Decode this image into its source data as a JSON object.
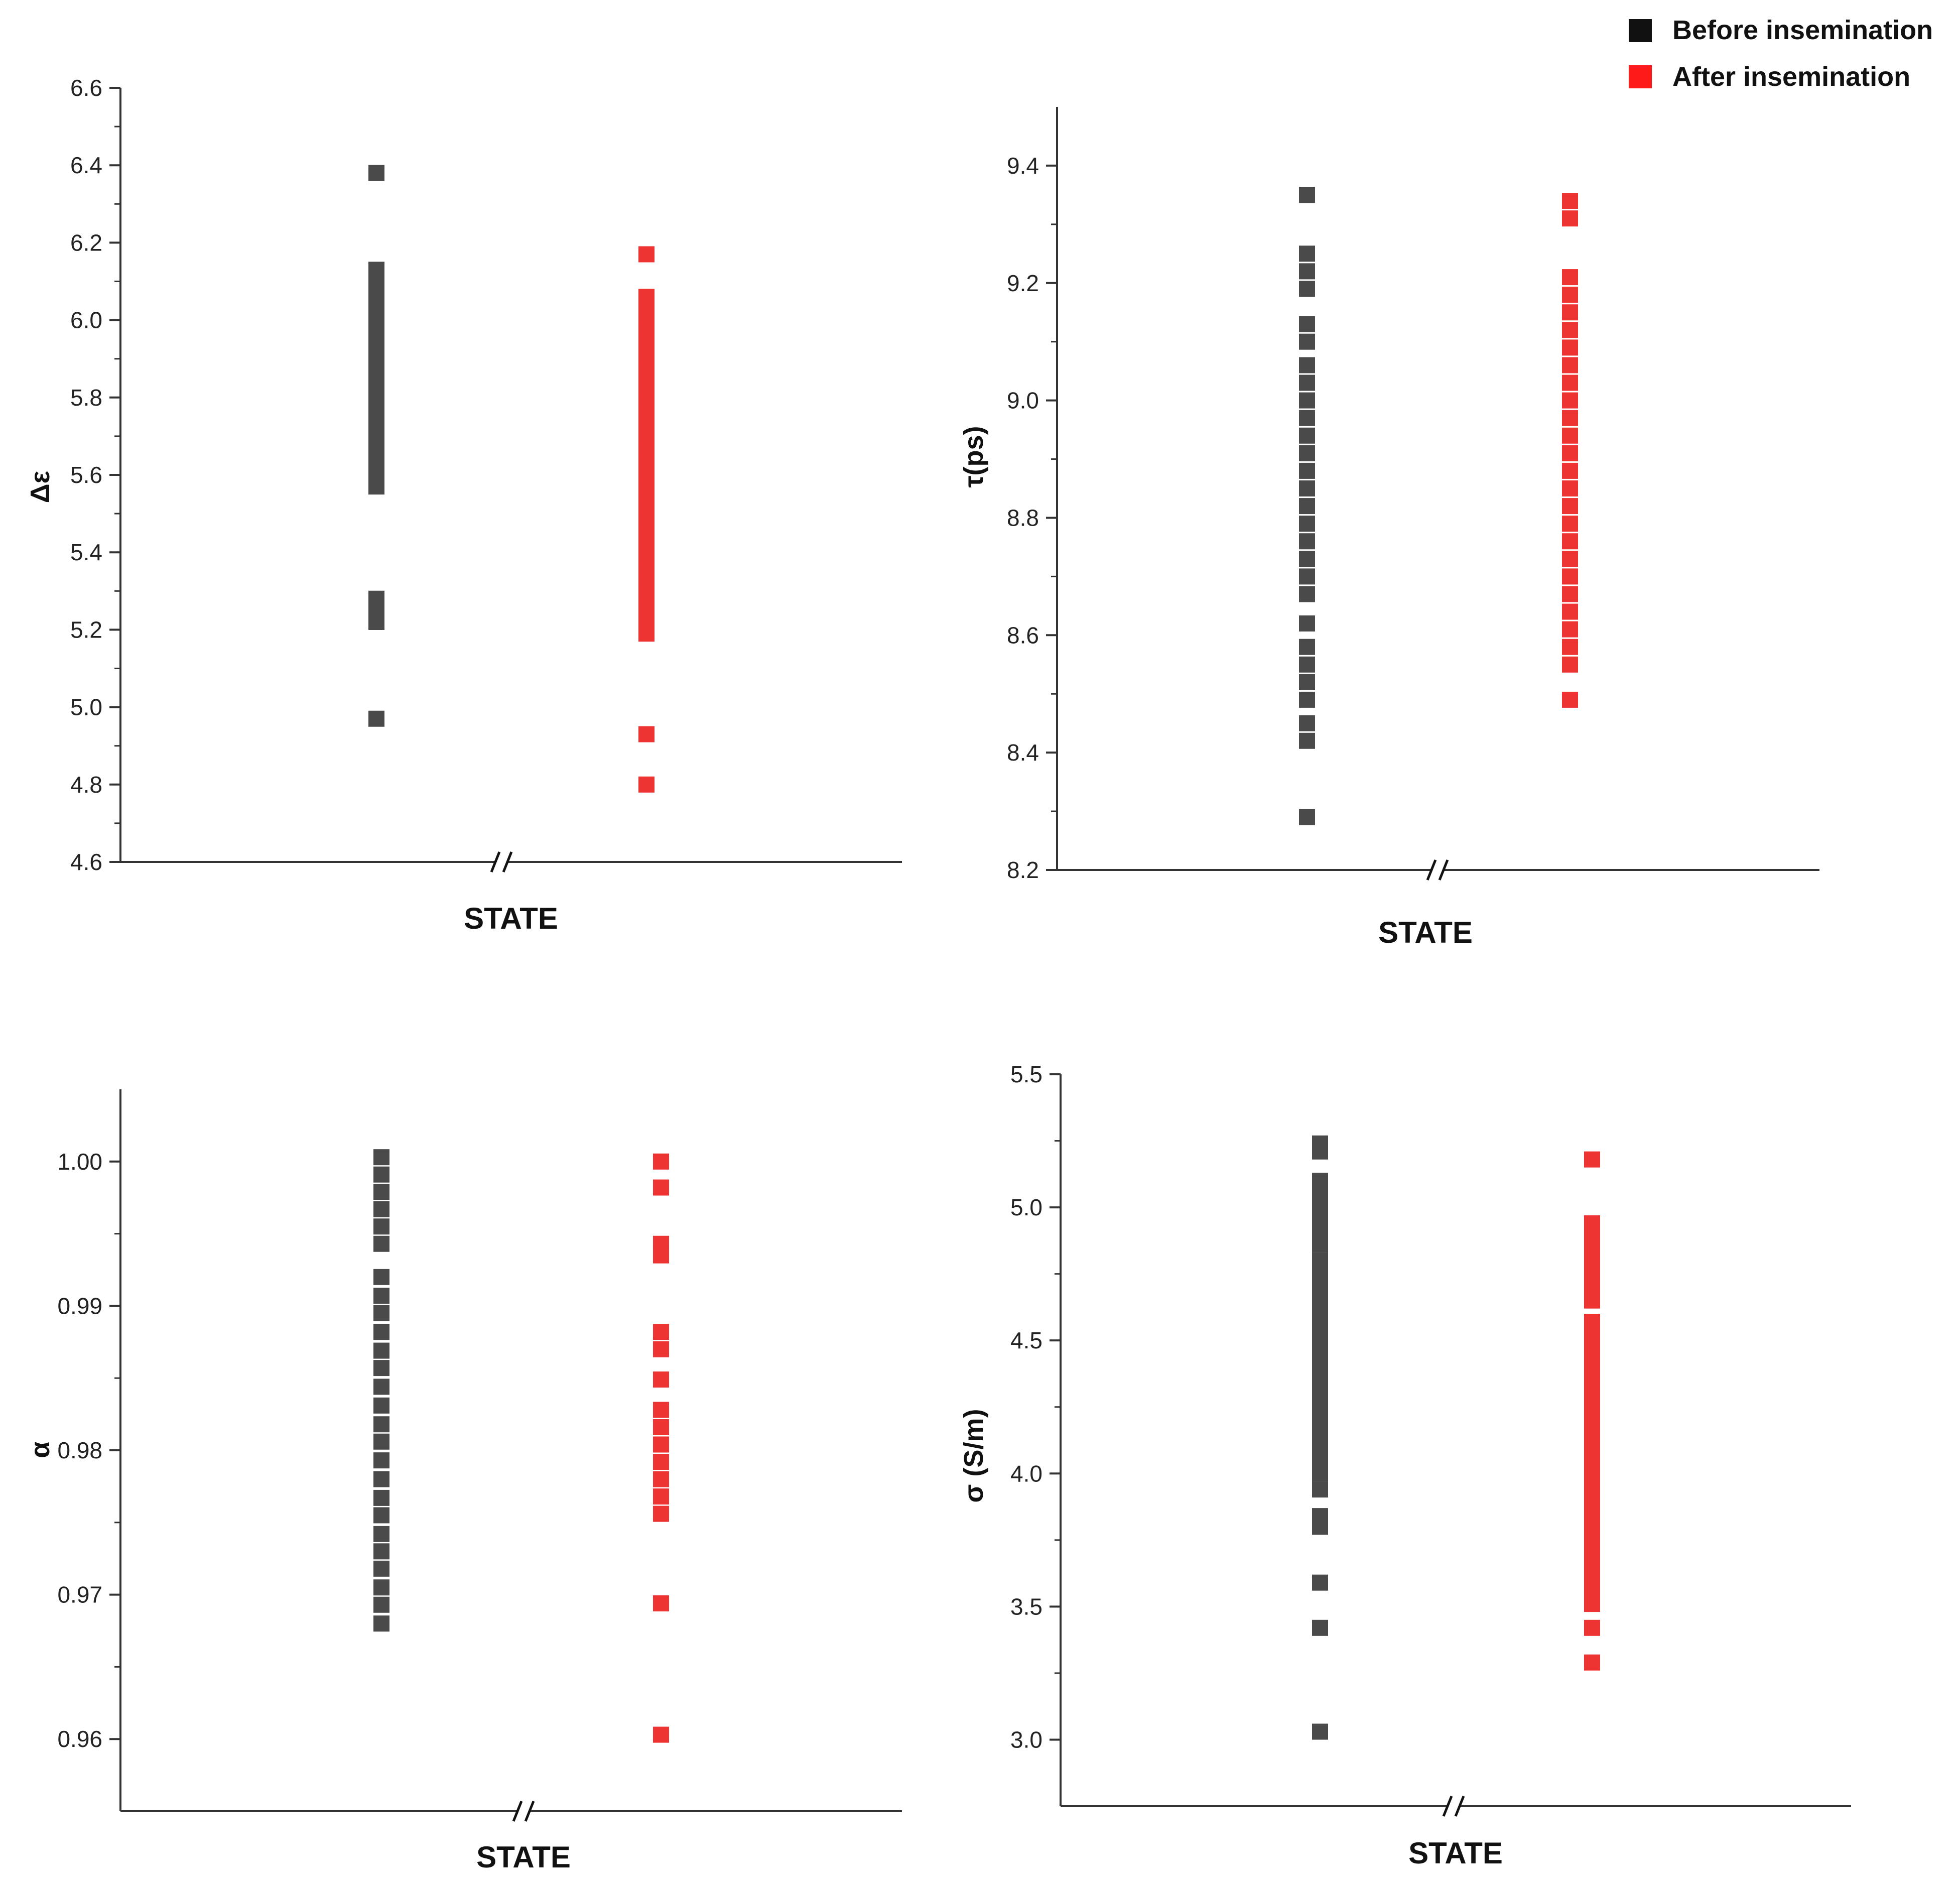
{
  "legend": {
    "before_label": "Before insemination",
    "after_label": "After insemination",
    "before_color": "#4a4a4a",
    "after_color": "#ee3333"
  },
  "chart_data": [
    {
      "type": "scatter",
      "title": "",
      "xlabel": "STATE",
      "ylabel": "Δε",
      "ylim": [
        4.6,
        6.6
      ],
      "yticks": [
        "4.6",
        "4.8",
        "5.0",
        "5.2",
        "5.4",
        "5.6",
        "5.8",
        "6.0",
        "6.2",
        "6.4",
        "6.6"
      ],
      "axis_break": true,
      "series": [
        {
          "name": "Before insemination",
          "values": [
            6.38,
            6.13,
            6.11,
            6.08,
            6.05,
            6.02,
            5.99,
            5.96,
            5.93,
            5.9,
            5.87,
            5.84,
            5.81,
            5.78,
            5.75,
            5.72,
            5.69,
            5.66,
            5.63,
            5.6,
            5.57,
            5.28,
            5.25,
            5.22,
            4.97
          ]
        },
        {
          "name": "After insemination",
          "values": [
            6.17,
            6.06,
            6.03,
            6.0,
            5.97,
            5.94,
            5.91,
            5.87,
            5.84,
            5.81,
            5.78,
            5.75,
            5.72,
            5.69,
            5.66,
            5.63,
            5.6,
            5.57,
            5.54,
            5.51,
            5.48,
            5.44,
            5.41,
            5.38,
            5.35,
            5.32,
            5.29,
            5.25,
            5.22,
            5.19,
            4.93,
            4.8
          ]
        }
      ]
    },
    {
      "type": "scatter",
      "title": "",
      "xlabel": "STATE",
      "ylabel": "τ(ps)",
      "ylim": [
        8.2,
        9.5
      ],
      "yticks": [
        "8.2",
        "8.4",
        "8.6",
        "8.8",
        "9.0",
        "9.2",
        "9.4"
      ],
      "axis_break": true,
      "series": [
        {
          "name": "Before insemination",
          "values": [
            9.35,
            9.25,
            9.22,
            9.19,
            9.13,
            9.1,
            9.06,
            9.03,
            9.0,
            8.97,
            8.94,
            8.91,
            8.88,
            8.85,
            8.82,
            8.79,
            8.76,
            8.73,
            8.7,
            8.67,
            8.62,
            8.58,
            8.55,
            8.52,
            8.49,
            8.45,
            8.42,
            8.29
          ]
        },
        {
          "name": "After insemination",
          "values": [
            9.34,
            9.31,
            9.21,
            9.18,
            9.15,
            9.12,
            9.09,
            9.06,
            9.03,
            9.0,
            8.97,
            8.94,
            8.91,
            8.88,
            8.85,
            8.82,
            8.79,
            8.76,
            8.73,
            8.7,
            8.67,
            8.64,
            8.61,
            8.58,
            8.55,
            8.49
          ]
        }
      ]
    },
    {
      "type": "scatter",
      "title": "",
      "xlabel": "STATE",
      "ylabel": "α",
      "ylim": [
        0.955,
        1.005
      ],
      "yticks": [
        "0.96",
        "0.97",
        "0.98",
        "0.99",
        "1.00"
      ],
      "axis_break": true,
      "series": [
        {
          "name": "Before insemination",
          "values": [
            1.0003,
            0.9991,
            0.9979,
            0.9967,
            0.9955,
            0.9943,
            0.992,
            0.9907,
            0.9895,
            0.9882,
            0.9869,
            0.9857,
            0.9844,
            0.9831,
            0.9818,
            0.9806,
            0.9793,
            0.978,
            0.9767,
            0.9755,
            0.9742,
            0.973,
            0.9718,
            0.9705,
            0.9693,
            0.968
          ]
        },
        {
          "name": "After insemination",
          "values": [
            1.0,
            0.9982,
            0.9943,
            0.9935,
            0.9882,
            0.987,
            0.9849,
            0.9828,
            0.9816,
            0.9804,
            0.9792,
            0.978,
            0.9768,
            0.9756,
            0.9694,
            0.9603
          ]
        }
      ]
    },
    {
      "type": "scatter",
      "title": "",
      "xlabel": "STATE",
      "ylabel": "σ (S/m)",
      "ylim": [
        2.75,
        5.5
      ],
      "yticks": [
        "3.0",
        "3.5",
        "4.0",
        "4.5",
        "5.0",
        "5.5"
      ],
      "axis_break": true,
      "series": [
        {
          "name": "Before insemination",
          "values": [
            5.24,
            5.21,
            5.1,
            5.06,
            5.02,
            4.98,
            4.94,
            4.9,
            4.86,
            4.8,
            4.76,
            4.72,
            4.68,
            4.64,
            4.6,
            4.56,
            4.52,
            4.48,
            4.44,
            4.4,
            4.36,
            4.32,
            4.28,
            4.24,
            4.2,
            4.16,
            4.12,
            4.08,
            4.04,
            4.0,
            3.94,
            3.84,
            3.8,
            3.59,
            3.42,
            3.03
          ]
        },
        {
          "name": "After insemination",
          "values": [
            5.18,
            4.94,
            4.89,
            4.85,
            4.81,
            4.77,
            4.73,
            4.69,
            4.65,
            4.57,
            4.53,
            4.49,
            4.45,
            4.41,
            4.37,
            4.33,
            4.29,
            4.25,
            4.21,
            4.17,
            4.13,
            4.09,
            4.05,
            4.01,
            3.97,
            3.93,
            3.89,
            3.83,
            3.79,
            3.75,
            3.71,
            3.67,
            3.63,
            3.59,
            3.55,
            3.51,
            3.42,
            3.29
          ]
        }
      ]
    }
  ]
}
